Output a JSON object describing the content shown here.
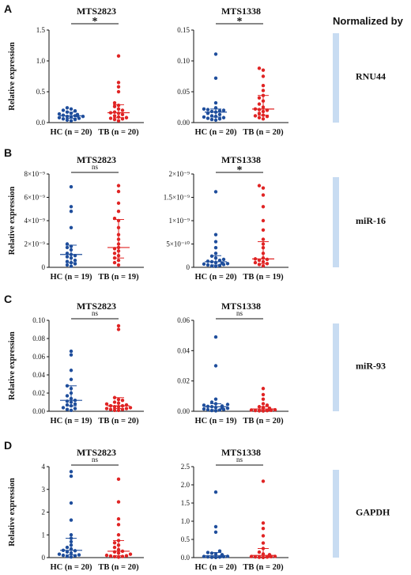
{
  "figure": {
    "normalized_by_label": "Normalized by",
    "y_axis_label": "Relative expression",
    "colors": {
      "HC": "#1f4e9c",
      "TB": "#e02424",
      "band": "#c8dcf2",
      "axis": "#111111"
    }
  },
  "chart_data": [
    {
      "panel": "A",
      "normalizer": "RNU44",
      "type": "scatter",
      "plots": [
        {
          "title": "MTS2823",
          "ylim": [
            0,
            1.5
          ],
          "yticks": [
            0,
            0.5,
            1.0,
            1.5
          ],
          "tick_labels": [
            "0.0",
            "0.5",
            "1.0",
            "1.5"
          ],
          "significance": "*",
          "groups": [
            {
              "label": "HC (n = 20)",
              "median": 0.11,
              "q1": 0.07,
              "q3": 0.17,
              "values": [
                0.03,
                0.04,
                0.05,
                0.06,
                0.07,
                0.08,
                0.09,
                0.1,
                0.1,
                0.11,
                0.11,
                0.12,
                0.13,
                0.14,
                0.15,
                0.17,
                0.19,
                0.2,
                0.22,
                0.24
              ]
            },
            {
              "label": "TB (n = 20)",
              "median": 0.16,
              "q1": 0.08,
              "q3": 0.29,
              "values": [
                0.03,
                0.05,
                0.06,
                0.07,
                0.08,
                0.09,
                0.11,
                0.13,
                0.15,
                0.16,
                0.17,
                0.2,
                0.22,
                0.26,
                0.28,
                0.32,
                0.5,
                0.58,
                0.65,
                1.08
              ]
            }
          ]
        },
        {
          "title": "MTS1338",
          "ylim": [
            0,
            0.15
          ],
          "yticks": [
            0,
            0.05,
            0.1,
            0.15
          ],
          "tick_labels": [
            "0.00",
            "0.05",
            "0.10",
            "0.15"
          ],
          "significance": "*",
          "groups": [
            {
              "label": "HC (n = 20)",
              "median": 0.017,
              "q1": 0.009,
              "q3": 0.022,
              "values": [
                0.004,
                0.005,
                0.006,
                0.007,
                0.008,
                0.009,
                0.01,
                0.011,
                0.013,
                0.015,
                0.017,
                0.018,
                0.019,
                0.02,
                0.021,
                0.022,
                0.024,
                0.032,
                0.072,
                0.111
              ]
            },
            {
              "label": "TB (n = 20)",
              "median": 0.022,
              "q1": 0.012,
              "q3": 0.044,
              "values": [
                0.006,
                0.008,
                0.01,
                0.011,
                0.012,
                0.015,
                0.018,
                0.02,
                0.021,
                0.022,
                0.025,
                0.03,
                0.035,
                0.04,
                0.044,
                0.052,
                0.06,
                0.075,
                0.085,
                0.088
              ]
            }
          ]
        }
      ]
    },
    {
      "panel": "B",
      "normalizer": "miR-16",
      "type": "scatter",
      "plots": [
        {
          "title": "MTS2823",
          "ylim": [
            0,
            8e-09
          ],
          "yticks": [
            0,
            2e-09,
            4e-09,
            6e-09,
            8e-09
          ],
          "tick_labels": [
            "0",
            "2×10⁻⁹",
            "4×10⁻⁹",
            "6×10⁻⁹",
            "8×10⁻⁹"
          ],
          "significance": "ns",
          "groups": [
            {
              "label": "HC (n = 19)",
              "median": 1.1e-09,
              "q1": 4e-10,
              "q3": 1.9e-09,
              "values": [
                1e-10,
                2e-10,
                3e-10,
                4e-10,
                5e-10,
                6e-10,
                8e-10,
                9e-10,
                1e-09,
                1.1e-09,
                1.2e-09,
                1.5e-09,
                1.7e-09,
                1.8e-09,
                2e-09,
                3.4e-09,
                4.8e-09,
                5.2e-09,
                6.9e-09
              ]
            },
            {
              "label": "TB (n = 19)",
              "median": 1.7e-09,
              "q1": 8e-10,
              "q3": 4.1e-09,
              "values": [
                2e-10,
                4e-10,
                6e-10,
                8e-10,
                1e-09,
                1.2e-09,
                1.4e-09,
                1.6e-09,
                1.7e-09,
                2e-09,
                2.4e-09,
                2.8e-09,
                3.4e-09,
                4e-09,
                4.2e-09,
                4.8e-09,
                5.5e-09,
                6.5e-09,
                7e-09
              ]
            }
          ]
        },
        {
          "title": "MTS1338",
          "ylim": [
            0,
            2e-09
          ],
          "yticks": [
            0,
            5e-10,
            1e-09,
            1.5e-09,
            2e-09
          ],
          "tick_labels": [
            "0",
            "5×10⁻¹⁰",
            "1×10⁻⁹",
            "1.5×10⁻⁹",
            "2×10⁻⁹"
          ],
          "significance": "*",
          "groups": [
            {
              "label": "HC (n = 20)",
              "median": 1.2e-10,
              "q1": 5e-11,
              "q3": 2.5e-10,
              "values": [
                2e-11,
                3e-11,
                4e-11,
                5e-11,
                6e-11,
                7e-11,
                8e-11,
                9e-11,
                1e-10,
                1.2e-10,
                1.3e-10,
                1.5e-10,
                1.7e-10,
                2e-10,
                2.4e-10,
                3e-10,
                4.2e-10,
                5.5e-10,
                7e-10,
                1.62e-09
              ]
            },
            {
              "label": "TB (n = 19)",
              "median": 1.8e-10,
              "q1": 8e-11,
              "q3": 5.5e-10,
              "values": [
                3e-11,
                6e-11,
                8e-11,
                1e-10,
                1.2e-10,
                1.5e-10,
                1.7e-10,
                1.8e-10,
                2e-10,
                3e-10,
                4.2e-10,
                5e-10,
                6e-10,
                8e-10,
                1e-09,
                1.3e-09,
                1.55e-09,
                1.7e-09,
                1.75e-09
              ]
            }
          ]
        }
      ]
    },
    {
      "panel": "C",
      "normalizer": "miR-93",
      "type": "scatter",
      "plots": [
        {
          "title": "MTS2823",
          "ylim": [
            0,
            0.1
          ],
          "yticks": [
            0,
            0.02,
            0.04,
            0.06,
            0.08,
            0.1
          ],
          "tick_labels": [
            "0.00",
            "0.02",
            "0.04",
            "0.06",
            "0.08",
            "0.10"
          ],
          "significance": "ns",
          "groups": [
            {
              "label": "HC (n = 19)",
              "median": 0.012,
              "q1": 0.006,
              "q3": 0.028,
              "values": [
                0.001,
                0.002,
                0.003,
                0.004,
                0.006,
                0.007,
                0.008,
                0.01,
                0.011,
                0.012,
                0.014,
                0.017,
                0.02,
                0.025,
                0.028,
                0.035,
                0.045,
                0.062,
                0.066
              ]
            },
            {
              "label": "TB (n = 20)",
              "median": 0.006,
              "q1": 0.003,
              "q3": 0.015,
              "values": [
                0.001,
                0.001,
                0.002,
                0.002,
                0.003,
                0.003,
                0.004,
                0.005,
                0.005,
                0.006,
                0.006,
                0.007,
                0.008,
                0.009,
                0.01,
                0.012,
                0.013,
                0.015,
                0.09,
                0.094
              ]
            }
          ]
        },
        {
          "title": "MTS1338",
          "ylim": [
            0,
            0.06
          ],
          "yticks": [
            0,
            0.02,
            0.04,
            0.06
          ],
          "tick_labels": [
            "0.00",
            "0.02",
            "0.04",
            "0.06"
          ],
          "significance": "ns",
          "groups": [
            {
              "label": "HC (n = 19)",
              "median": 0.003,
              "q1": 0.001,
              "q3": 0.005,
              "values": [
                0.0003,
                0.0005,
                0.0008,
                0.001,
                0.0012,
                0.0015,
                0.002,
                0.0022,
                0.0025,
                0.003,
                0.0032,
                0.0035,
                0.004,
                0.0045,
                0.005,
                0.006,
                0.008,
                0.03,
                0.049
              ]
            },
            {
              "label": "TB (n = 20)",
              "median": 0.0015,
              "q1": 0.0006,
              "q3": 0.003,
              "values": [
                0.0002,
                0.0003,
                0.0004,
                0.0005,
                0.0006,
                0.0008,
                0.001,
                0.0012,
                0.0013,
                0.0015,
                0.0016,
                0.0018,
                0.002,
                0.0025,
                0.003,
                0.004,
                0.005,
                0.008,
                0.011,
                0.015
              ]
            }
          ]
        }
      ]
    },
    {
      "panel": "D",
      "normalizer": "GAPDH",
      "type": "scatter",
      "plots": [
        {
          "title": "MTS2823",
          "ylim": [
            0,
            4
          ],
          "yticks": [
            0,
            1,
            2,
            3,
            4
          ],
          "tick_labels": [
            "0",
            "1",
            "2",
            "3",
            "4"
          ],
          "significance": "ns",
          "groups": [
            {
              "label": "HC (n = 20)",
              "median": 0.32,
              "q1": 0.12,
              "q3": 0.85,
              "values": [
                0.03,
                0.05,
                0.08,
                0.1,
                0.12,
                0.15,
                0.2,
                0.25,
                0.3,
                0.32,
                0.38,
                0.45,
                0.55,
                0.7,
                0.85,
                1.0,
                1.65,
                2.4,
                3.58,
                3.78
              ]
            },
            {
              "label": "TB (n = 20)",
              "median": 0.28,
              "q1": 0.08,
              "q3": 0.75,
              "values": [
                0.02,
                0.04,
                0.05,
                0.07,
                0.08,
                0.1,
                0.15,
                0.2,
                0.25,
                0.28,
                0.35,
                0.45,
                0.55,
                0.65,
                0.75,
                1.0,
                1.45,
                1.7,
                2.45,
                3.45
              ]
            }
          ]
        },
        {
          "title": "MTS1338",
          "ylim": [
            0,
            2.5
          ],
          "yticks": [
            0,
            0.5,
            1.0,
            1.5,
            2.0,
            2.5
          ],
          "tick_labels": [
            "0.0",
            "0.5",
            "1.0",
            "1.5",
            "2.0",
            "2.5"
          ],
          "significance": "ns",
          "groups": [
            {
              "label": "HC (n = 20)",
              "median": 0.05,
              "q1": 0.02,
              "q3": 0.14,
              "values": [
                0.005,
                0.01,
                0.015,
                0.02,
                0.025,
                0.03,
                0.035,
                0.04,
                0.045,
                0.05,
                0.06,
                0.07,
                0.08,
                0.1,
                0.12,
                0.14,
                0.18,
                0.7,
                0.85,
                1.8
              ]
            },
            {
              "label": "TB (n = 20)",
              "median": 0.06,
              "q1": 0.02,
              "q3": 0.25,
              "values": [
                0.005,
                0.01,
                0.015,
                0.02,
                0.025,
                0.03,
                0.035,
                0.04,
                0.05,
                0.06,
                0.07,
                0.08,
                0.1,
                0.15,
                0.25,
                0.4,
                0.6,
                0.8,
                0.95,
                2.1
              ]
            }
          ]
        }
      ]
    }
  ]
}
